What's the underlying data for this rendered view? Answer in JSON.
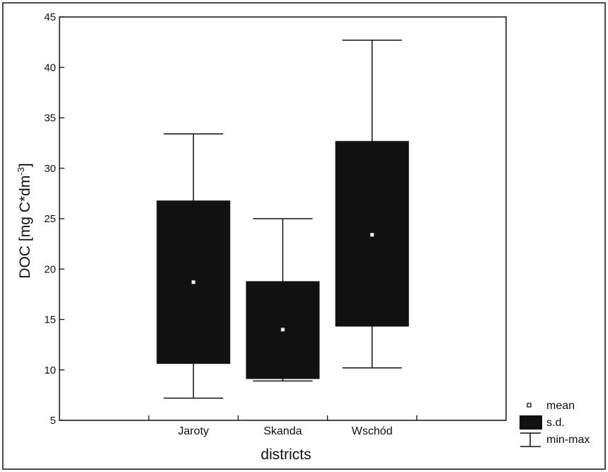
{
  "chart_data": {
    "type": "box",
    "title": "",
    "xlabel": "districts",
    "ylabel": "DOC [mg C*dm",
    "ylabel_superscript": "-3",
    "ylabel_suffix": "]",
    "ylim": [
      5,
      45
    ],
    "yticks": [
      5,
      10,
      15,
      20,
      25,
      30,
      35,
      40,
      45
    ],
    "categories": [
      "Jaroty",
      "Skanda",
      "Wschód"
    ],
    "series": [
      {
        "category": "Jaroty",
        "mean": 18.7,
        "sd_low": 10.6,
        "sd_high": 26.8,
        "min": 7.2,
        "max": 33.4
      },
      {
        "category": "Skanda",
        "mean": 14.0,
        "sd_low": 9.1,
        "sd_high": 18.8,
        "min": 8.9,
        "max": 25.0
      },
      {
        "category": "Wschód",
        "mean": 23.4,
        "sd_low": 14.3,
        "sd_high": 32.7,
        "min": 10.2,
        "max": 42.7
      }
    ],
    "grid": false,
    "legend": {
      "placement": "bottom-right",
      "items": [
        {
          "symbol": "mean-marker",
          "label": "mean"
        },
        {
          "symbol": "filled-box",
          "label": "s.d."
        },
        {
          "symbol": "whisker",
          "label": "min-max"
        }
      ]
    },
    "colors": {
      "box": "#111111",
      "line": "#111111",
      "mean": "#ffffff"
    }
  }
}
